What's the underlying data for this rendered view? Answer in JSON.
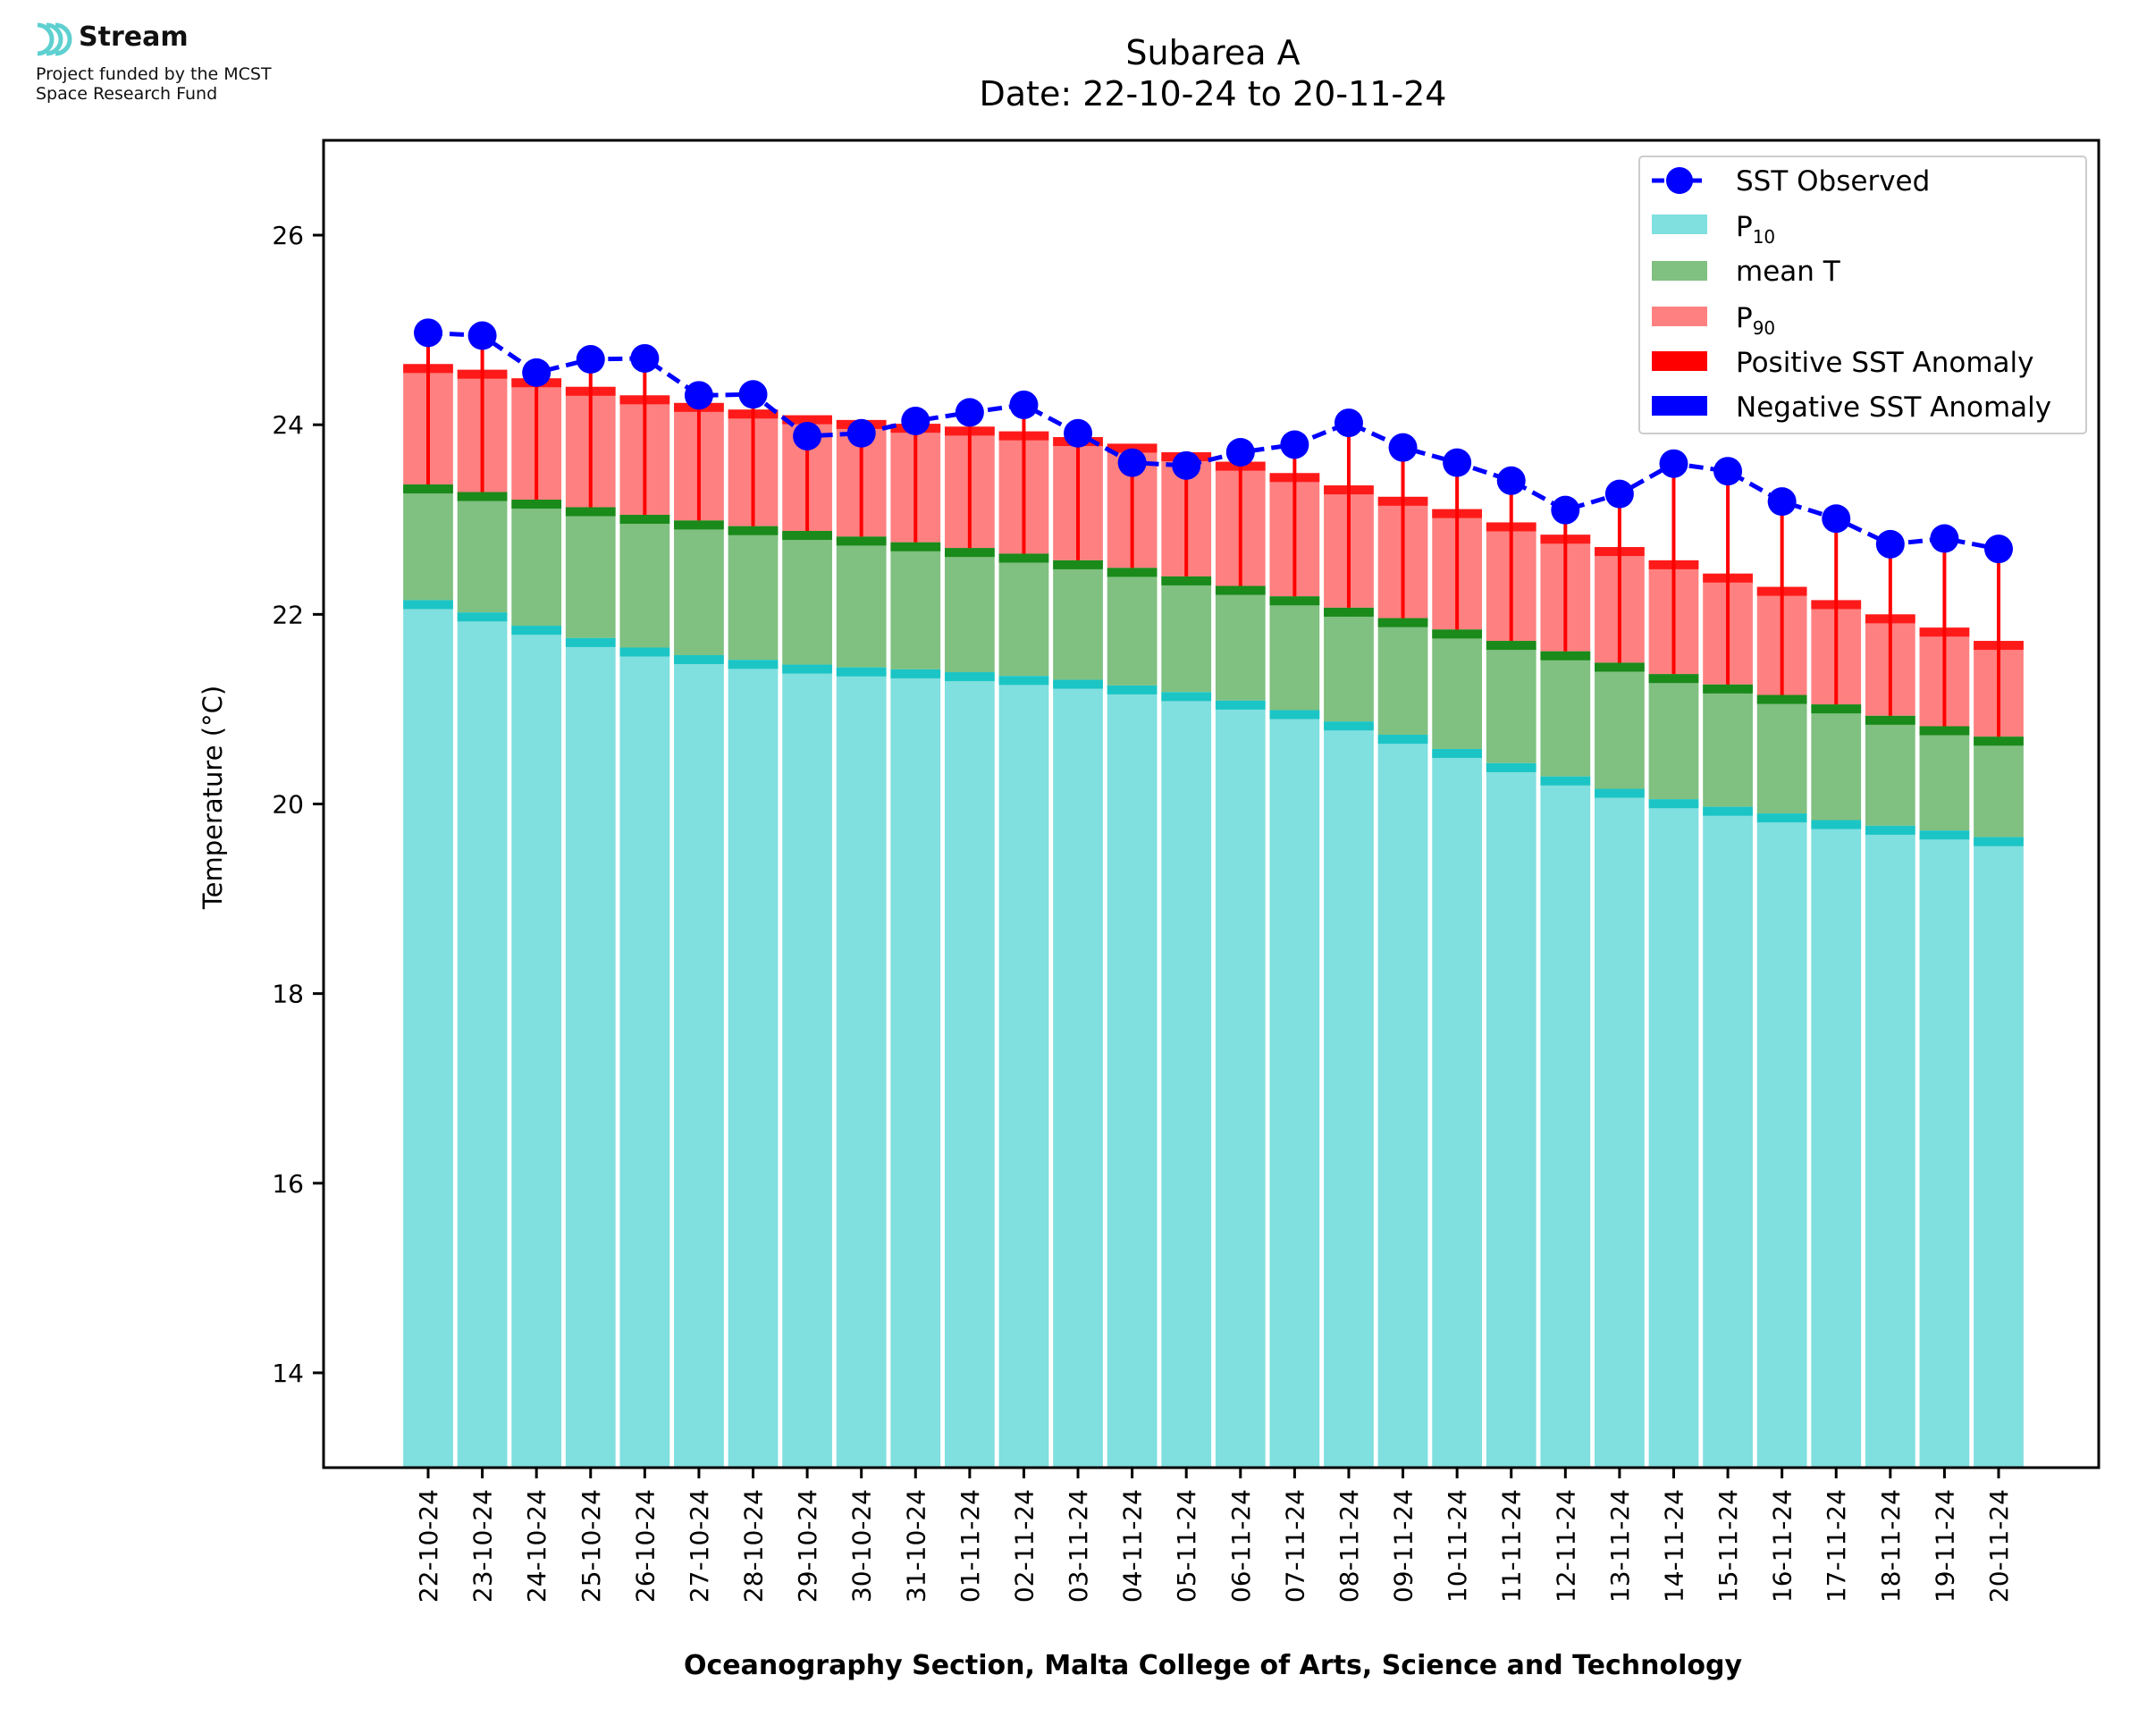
{
  "logo": {
    "name": "Stream",
    "line1": "Project funded by the MCST",
    "line2": "Space Research Fund"
  },
  "chart_data": {
    "type": "bar",
    "title": "Subarea A",
    "subtitle": "Date: 22-10-24 to 20-11-24",
    "xlabel": "Oceanography Section, Malta College of Arts, Science and Technology",
    "ylabel": "Temperature (°C)",
    "ylim": [
      13,
      27
    ],
    "yticks": [
      14,
      16,
      18,
      20,
      22,
      24,
      26
    ],
    "grid": false,
    "legend_position": "top-right",
    "categories": [
      "22-10-24",
      "23-10-24",
      "24-10-24",
      "25-10-24",
      "26-10-24",
      "27-10-24",
      "28-10-24",
      "29-10-24",
      "30-10-24",
      "31-10-24",
      "01-11-24",
      "02-11-24",
      "03-11-24",
      "04-11-24",
      "05-11-24",
      "06-11-24",
      "07-11-24",
      "08-11-24",
      "09-11-24",
      "10-11-24",
      "11-11-24",
      "12-11-24",
      "13-11-24",
      "14-11-24",
      "15-11-24",
      "16-11-24",
      "17-11-24",
      "18-11-24",
      "19-11-24",
      "20-11-24"
    ],
    "series": [
      {
        "name": "P10",
        "label_base": "P",
        "label_sub": "10",
        "color": "#80DFDF",
        "edge_color": "#1CC5C5",
        "values": [
          22.15,
          22.02,
          21.88,
          21.75,
          21.65,
          21.57,
          21.52,
          21.47,
          21.44,
          21.42,
          21.39,
          21.35,
          21.31,
          21.25,
          21.18,
          21.09,
          20.99,
          20.87,
          20.73,
          20.58,
          20.43,
          20.29,
          20.16,
          20.05,
          19.97,
          19.9,
          19.83,
          19.77,
          19.72,
          19.65
        ]
      },
      {
        "name": "mean T",
        "color": "#80C080",
        "edge_color": "#1A8A1A",
        "values": [
          23.37,
          23.29,
          23.21,
          23.13,
          23.05,
          22.99,
          22.93,
          22.88,
          22.82,
          22.76,
          22.7,
          22.64,
          22.57,
          22.49,
          22.4,
          22.3,
          22.19,
          22.07,
          21.96,
          21.84,
          21.72,
          21.61,
          21.49,
          21.37,
          21.26,
          21.15,
          21.05,
          20.93,
          20.82,
          20.71
        ]
      },
      {
        "name": "P90",
        "label_base": "P",
        "label_sub": "90",
        "color": "#FF8080",
        "edge_color": "#FF1A1A",
        "values": [
          24.64,
          24.58,
          24.49,
          24.4,
          24.31,
          24.23,
          24.16,
          24.1,
          24.05,
          24.01,
          23.98,
          23.93,
          23.87,
          23.8,
          23.71,
          23.61,
          23.49,
          23.36,
          23.24,
          23.11,
          22.97,
          22.84,
          22.71,
          22.57,
          22.43,
          22.29,
          22.15,
          22.0,
          21.86,
          21.72
        ]
      },
      {
        "name": "SST Observed",
        "color": "#0000FF",
        "values": [
          24.97,
          24.94,
          24.55,
          24.69,
          24.7,
          24.31,
          24.32,
          23.88,
          23.91,
          24.04,
          24.13,
          24.21,
          23.91,
          23.6,
          23.57,
          23.71,
          23.79,
          24.02,
          23.76,
          23.6,
          23.41,
          23.1,
          23.27,
          23.59,
          23.51,
          23.19,
          23.01,
          22.74,
          22.8,
          22.69
        ]
      }
    ],
    "anomaly_legend": [
      {
        "name": "Positive SST Anomaly",
        "color": "#FF0000"
      },
      {
        "name": "Negative SST Anomaly",
        "color": "#0000FF"
      }
    ]
  }
}
